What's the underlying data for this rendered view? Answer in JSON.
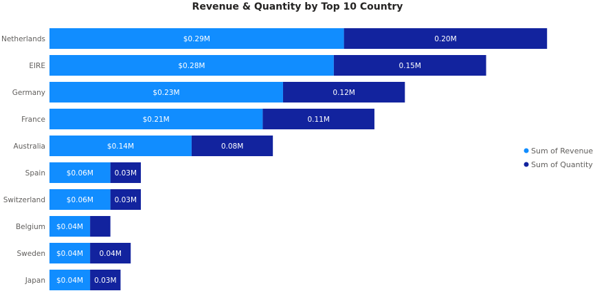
{
  "chart_data": {
    "type": "bar",
    "orientation": "horizontal",
    "stacked": true,
    "title": "Revenue & Quantity by Top 10 Country",
    "categories": [
      "Netherlands",
      "EIRE",
      "Germany",
      "France",
      "Australia",
      "Spain",
      "Switzerland",
      "Belgium",
      "Sweden",
      "Japan"
    ],
    "series": [
      {
        "name": "Sum of Revenue",
        "color": "#118dff",
        "values": [
          0.29,
          0.28,
          0.23,
          0.21,
          0.14,
          0.06,
          0.06,
          0.04,
          0.04,
          0.04
        ],
        "labels": [
          "$0.29M",
          "$0.28M",
          "$0.23M",
          "$0.21M",
          "$0.14M",
          "$0.06M",
          "$0.06M",
          "$0.04M",
          "$0.04M",
          "$0.04M"
        ]
      },
      {
        "name": "Sum of Quantity",
        "color": "#12239e",
        "values": [
          0.2,
          0.15,
          0.12,
          0.11,
          0.08,
          0.03,
          0.03,
          0.02,
          0.04,
          0.03
        ],
        "labels": [
          "0.20M",
          "0.15M",
          "0.12M",
          "0.11M",
          "0.08M",
          "0.03M",
          "0.03M",
          "",
          "0.04M",
          "0.03M"
        ]
      }
    ],
    "xlim": [
      0,
      0.5
    ],
    "grid": false,
    "legend": "right"
  }
}
